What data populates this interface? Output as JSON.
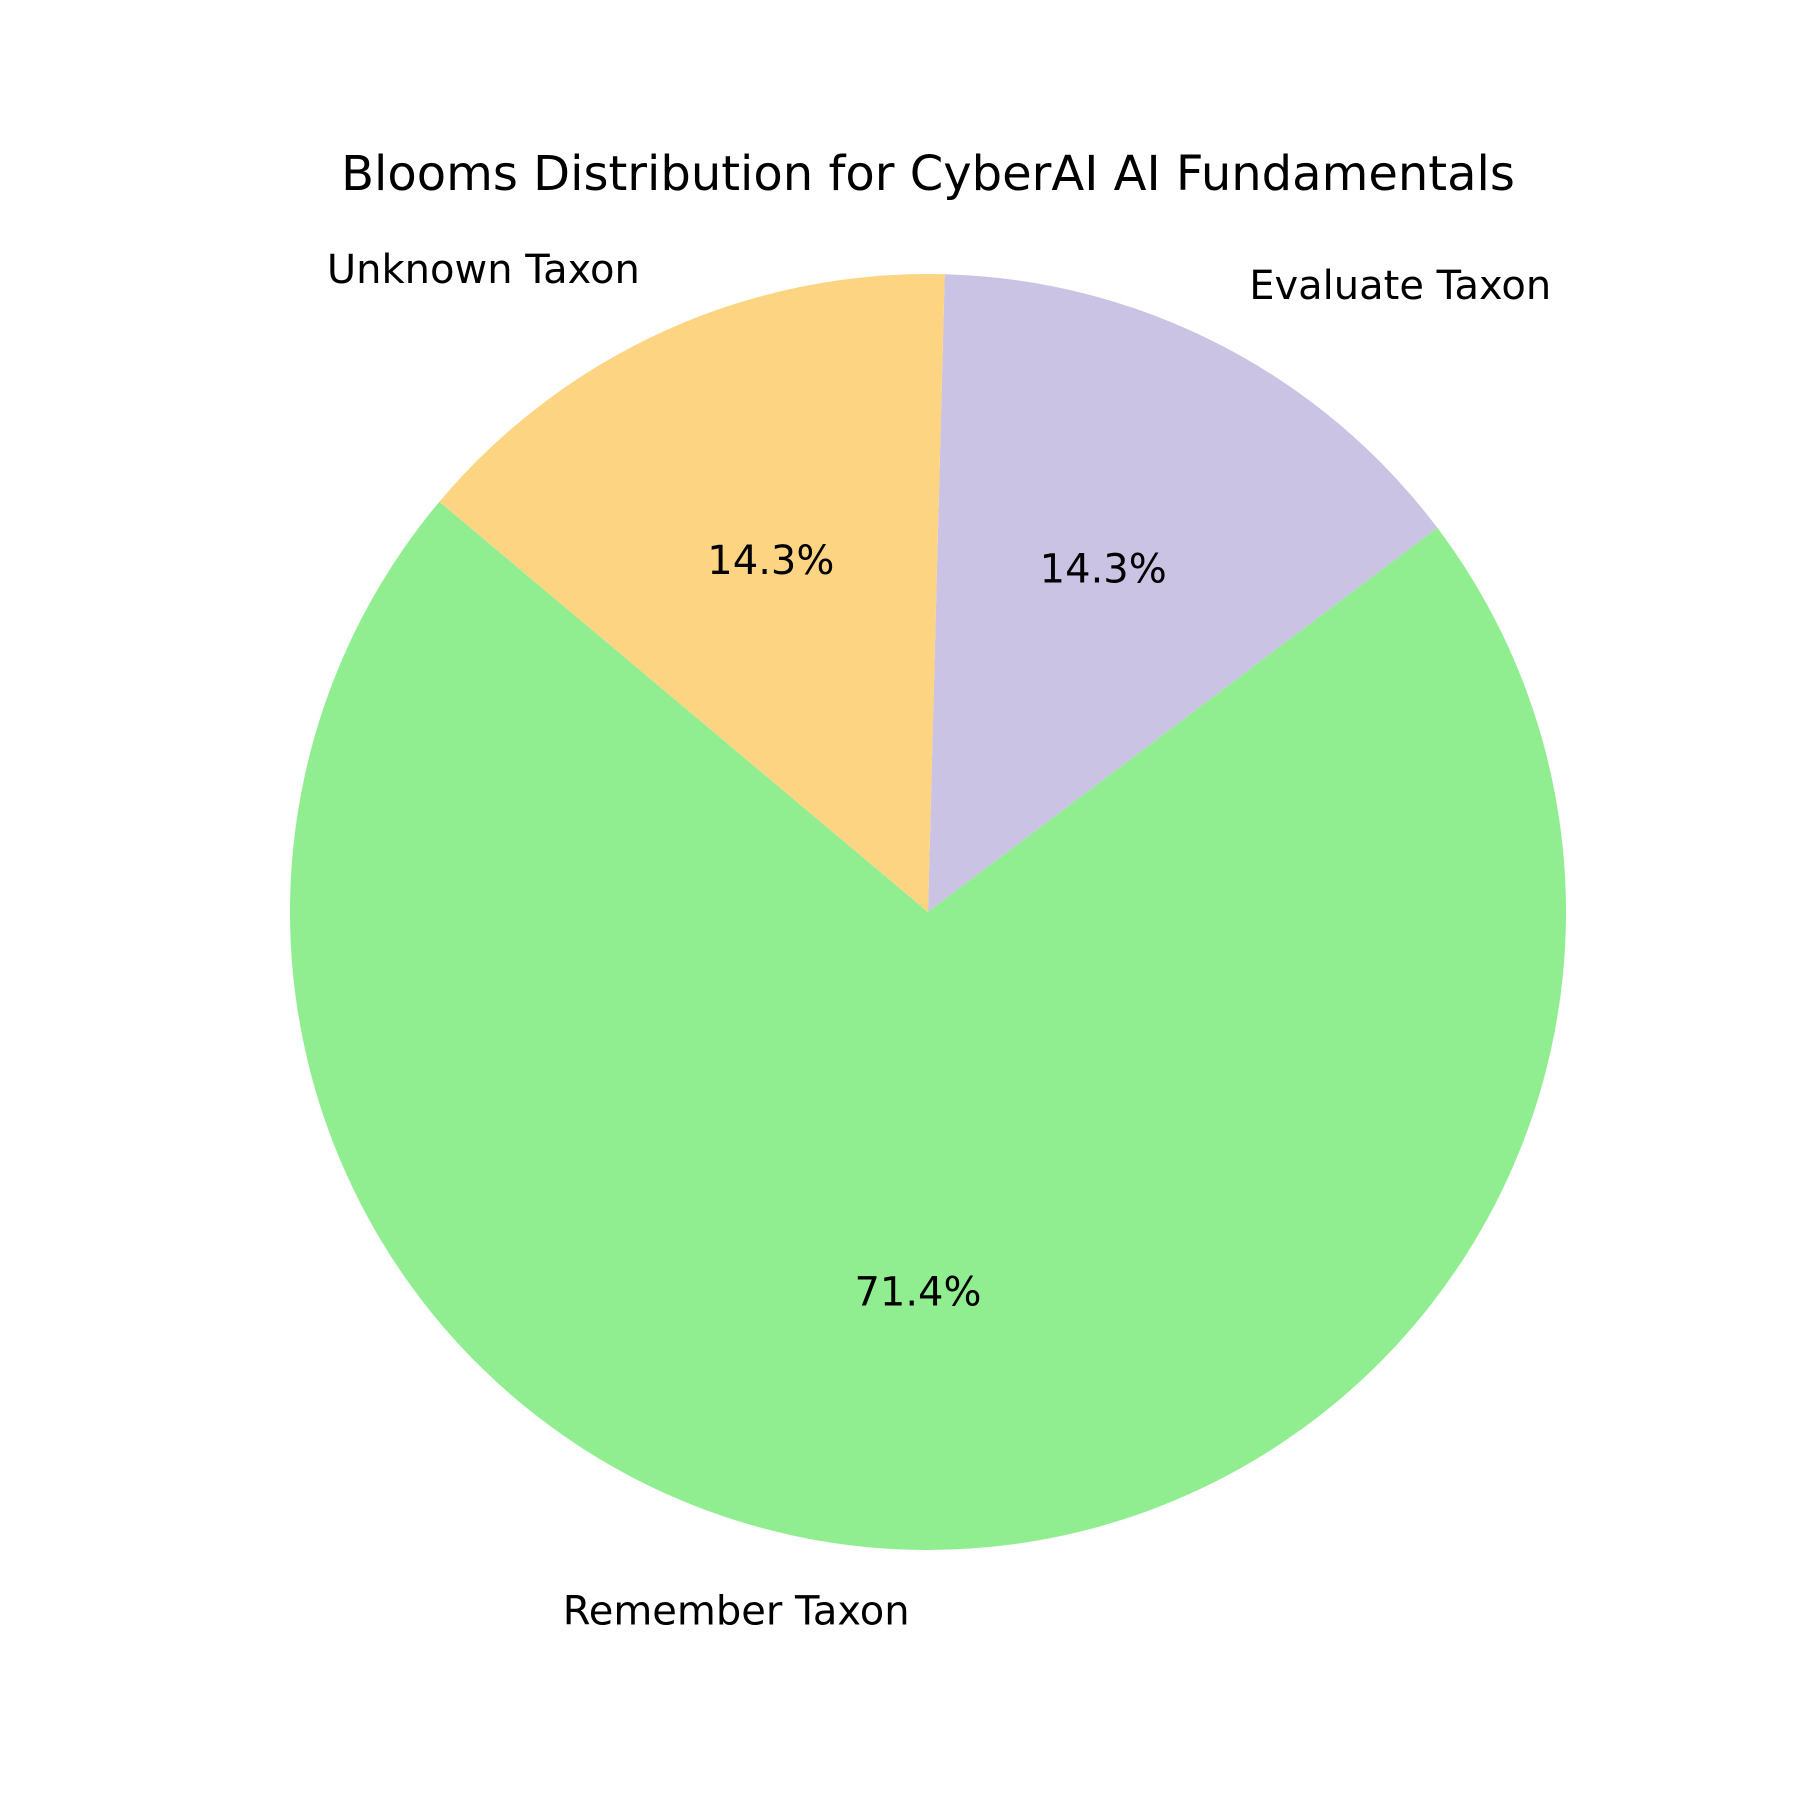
{
  "chart_data": {
    "type": "pie",
    "title": "Blooms Distribution for CyberAI AI Fundamentals",
    "slices": [
      {
        "label": "Evaluate Taxon",
        "value": 14.3,
        "pct_label": "14.3%",
        "color": "#cbc3e3"
      },
      {
        "label": "Remember Taxon",
        "value": 71.4,
        "pct_label": "71.4%",
        "color": "#90ee90"
      },
      {
        "label": "Unknown Taxon",
        "value": 14.3,
        "pct_label": "14.3%",
        "color": "#fdd582"
      }
    ],
    "start_angle_deg": 88.5,
    "direction": "clockwise",
    "legend": "none"
  }
}
